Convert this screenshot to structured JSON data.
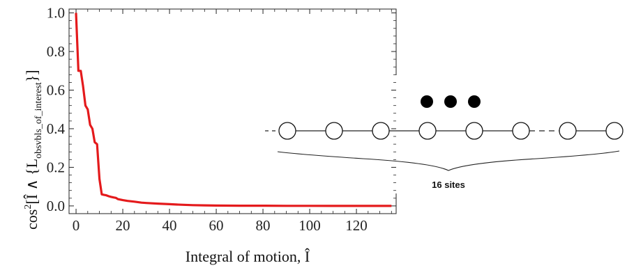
{
  "chart_data": {
    "type": "line",
    "xlabel": "Integral of motion, Î",
    "ylabel": "cos²[Î ∧ {L_obsvbls_of_interest}]",
    "ylabel_parts": {
      "main": "cos",
      "sup": "2",
      "mid": "[Î ∧ {L",
      "sub": "obsvbls_of_interest",
      "end": "}]"
    },
    "xlim": [
      -3,
      137
    ],
    "ylim": [
      -0.04,
      1.02
    ],
    "xticks": [
      0,
      20,
      40,
      60,
      80,
      100,
      120
    ],
    "xtick_labels": [
      "0",
      "20",
      "40",
      "60",
      "80",
      "100",
      "120"
    ],
    "yticks": [
      0.0,
      0.2,
      0.4,
      0.6,
      0.8,
      1.0
    ],
    "ytick_labels": [
      "0.0",
      "0.2",
      "0.4",
      "0.6",
      "0.8",
      "1.0"
    ],
    "grid": false,
    "series": [
      {
        "color": "#e41a1c",
        "x": [
          0,
          1,
          2,
          3,
          4,
          5,
          6,
          7,
          8,
          9,
          10,
          11,
          12,
          13,
          14,
          15,
          16,
          17,
          18,
          20,
          22,
          25,
          28,
          30,
          35,
          40,
          45,
          50,
          55,
          60,
          70,
          80,
          90,
          100,
          110,
          120,
          130,
          135
        ],
        "y": [
          1.0,
          0.7,
          0.7,
          0.62,
          0.52,
          0.5,
          0.42,
          0.4,
          0.33,
          0.32,
          0.14,
          0.06,
          0.057,
          0.055,
          0.05,
          0.047,
          0.044,
          0.042,
          0.035,
          0.03,
          0.026,
          0.022,
          0.017,
          0.015,
          0.012,
          0.009,
          0.006,
          0.004,
          0.003,
          0.002,
          0.001,
          0.001,
          0.0005,
          0.0003,
          0.0002,
          0.0001,
          0.0,
          0.0
        ]
      }
    ]
  },
  "inset": {
    "site_count": 8,
    "dashed_gap_after": 6,
    "dot_count": 3,
    "caption": "16 sites"
  }
}
